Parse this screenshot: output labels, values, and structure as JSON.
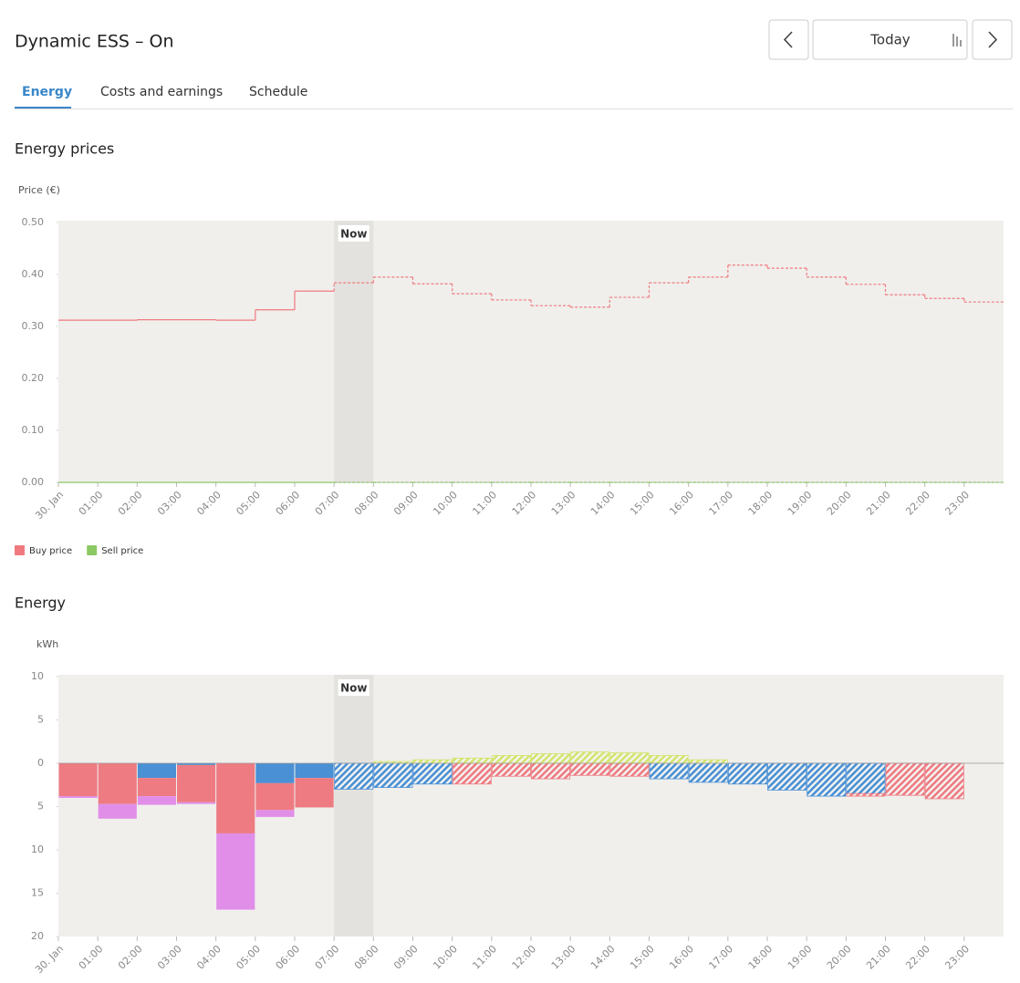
{
  "header": {
    "title": "Dynamic ESS – On",
    "date_button": "Today"
  },
  "tabs": [
    "Energy",
    "Costs and earnings",
    "Schedule"
  ],
  "active_tab": 0,
  "chart_data": [
    {
      "type": "line",
      "title": "Energy prices",
      "y_label": "Price (€)",
      "categories": [
        "30. Jan",
        "01:00",
        "02:00",
        "03:00",
        "04:00",
        "05:00",
        "06:00",
        "07:00",
        "08:00",
        "09:00",
        "10:00",
        "11:00",
        "12:00",
        "13:00",
        "14:00",
        "15:00",
        "16:00",
        "17:00",
        "18:00",
        "19:00",
        "20:00",
        "21:00",
        "22:00",
        "23:00"
      ],
      "series": [
        {
          "name": "Buy price",
          "color": "#f07a80",
          "values": [
            0.312,
            0.312,
            0.313,
            0.313,
            0.312,
            0.332,
            0.368,
            0.384,
            0.395,
            0.382,
            0.363,
            0.351,
            0.34,
            0.337,
            0.356,
            0.384,
            0.395,
            0.418,
            0.412,
            0.395,
            0.381,
            0.361,
            0.354,
            0.347
          ]
        },
        {
          "name": "Sell price",
          "color": "#8cc864",
          "values": [
            0,
            0,
            0,
            0,
            0,
            0,
            0,
            0,
            0,
            0,
            0,
            0,
            0,
            0,
            0,
            0,
            0,
            0,
            0,
            0,
            0,
            0,
            0,
            0
          ]
        }
      ],
      "ylim": [
        0,
        0.5
      ],
      "yticks": [
        {
          "value": 0,
          "label": "0.00"
        },
        {
          "value": 0.1,
          "label": "0.10"
        },
        {
          "value": 0.2,
          "label": "0.20"
        },
        {
          "value": 0.3,
          "label": "0.30"
        },
        {
          "value": 0.4,
          "label": "0.40"
        },
        {
          "value": 0.5,
          "label": "0.50"
        }
      ],
      "now": {
        "label": "Now",
        "at": "07:00"
      },
      "legend": "bottom-left"
    },
    {
      "type": "stacked_bar",
      "title": "Energy",
      "y_label": "kWh",
      "categories": [
        "30. Jan",
        "01:00",
        "02:00",
        "03:00",
        "04:00",
        "05:00",
        "06:00",
        "07:00",
        "08:00",
        "09:00",
        "10:00",
        "11:00",
        "12:00",
        "13:00",
        "14:00",
        "15:00",
        "16:00",
        "17:00",
        "18:00",
        "19:00",
        "20:00",
        "21:00",
        "22:00",
        "23:00"
      ],
      "series": [
        {
          "color": "#4a90d4",
          "values": [
            null,
            null,
            -1.7,
            -0.2,
            null,
            -2.3,
            -1.7,
            -3.0,
            -2.8,
            -2.4,
            null,
            null,
            null,
            null,
            null,
            -1.8,
            -2.2,
            -2.4,
            -3.1,
            -3.8,
            -3.5,
            null,
            null,
            null
          ]
        },
        {
          "color": "#ee7b82",
          "values": [
            -3.8,
            -4.7,
            -2.1,
            -4.3,
            -8.1,
            -3.1,
            -3.4,
            null,
            null,
            null,
            -2.4,
            -1.5,
            -1.8,
            -1.4,
            -1.5,
            null,
            null,
            null,
            null,
            null,
            -0.3,
            -3.7,
            -4.1,
            null
          ]
        },
        {
          "color": "#e08ee8",
          "values": [
            -0.2,
            -1.7,
            -1.0,
            -0.2,
            -8.8,
            -0.8,
            null,
            null,
            null,
            null,
            null,
            null,
            null,
            null,
            null,
            null,
            null,
            null,
            null,
            null,
            null,
            null,
            null,
            null
          ]
        },
        {
          "color": "#d4e46e",
          "values": [
            null,
            null,
            null,
            null,
            null,
            null,
            null,
            null,
            0.2,
            0.4,
            0.6,
            0.9,
            1.1,
            1.3,
            1.2,
            0.9,
            0.4,
            null,
            null,
            null,
            null,
            null,
            null,
            null
          ]
        }
      ],
      "ylim": [
        -20,
        10
      ],
      "yticks": [
        {
          "value": 10,
          "label": "10"
        },
        {
          "value": 5,
          "label": "5"
        },
        {
          "value": 0,
          "label": "0"
        },
        {
          "value": -5,
          "label": "5"
        },
        {
          "value": -10,
          "label": "10"
        },
        {
          "value": -15,
          "label": "15"
        },
        {
          "value": -20,
          "label": "20"
        }
      ],
      "now": {
        "label": "Now",
        "at": "07:00"
      }
    }
  ]
}
